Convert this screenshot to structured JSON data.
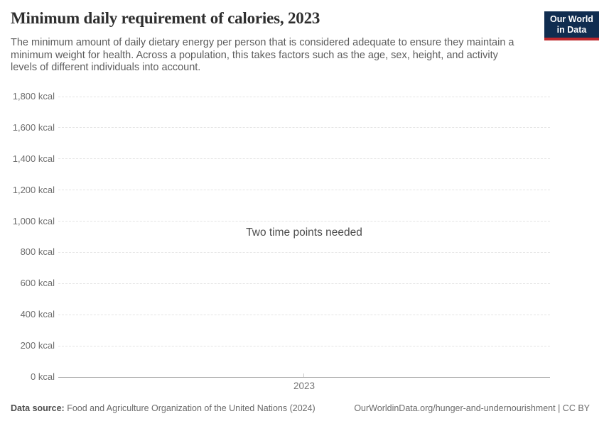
{
  "header": {
    "title": "Minimum daily requirement of calories, 2023",
    "subtitle_lines": [
      "The minimum amount of daily dietary energy per person that is considered adequate to ensure they maintain a",
      "minimum weight for health. Across a population, this takes factors such as the age, sex, height, and activity",
      "levels of different individuals into account."
    ],
    "logo": {
      "line1": "Our World",
      "line2": "in Data"
    }
  },
  "chart_data": {
    "type": "line",
    "title": "Minimum daily requirement of calories, 2023",
    "xlabel": "",
    "ylabel": "kcal",
    "ylim": [
      0,
      1800
    ],
    "x_axis_ticks": [
      "2023"
    ],
    "y_axis_ticks": [
      {
        "label": "1,800 kcal",
        "value": 1800
      },
      {
        "label": "1,600 kcal",
        "value": 1600
      },
      {
        "label": "1,400 kcal",
        "value": 1400
      },
      {
        "label": "1,200 kcal",
        "value": 1200
      },
      {
        "label": "1,000 kcal",
        "value": 1000
      },
      {
        "label": "800 kcal",
        "value": 800
      },
      {
        "label": "600 kcal",
        "value": 600
      },
      {
        "label": "400 kcal",
        "value": 400
      },
      {
        "label": "200 kcal",
        "value": 200
      },
      {
        "label": "0 kcal",
        "value": 0
      }
    ],
    "series": [],
    "empty_state_message": "Two time points needed",
    "grid": "horizontal-dashed",
    "legend": "none"
  },
  "footer": {
    "source_label": "Data source:",
    "source_text": " Food and Agriculture Organization of the United Nations (2024)",
    "link_text": "OurWorldinData.org/hunger-and-undernourishment",
    "license_text": " | CC BY"
  },
  "colors": {
    "logo_bg": "#102d50",
    "logo_accent": "#be282d",
    "gridline": "#e4e4e4",
    "axis_line": "#aaaaaa",
    "tick_text": "#6e6e6e"
  }
}
